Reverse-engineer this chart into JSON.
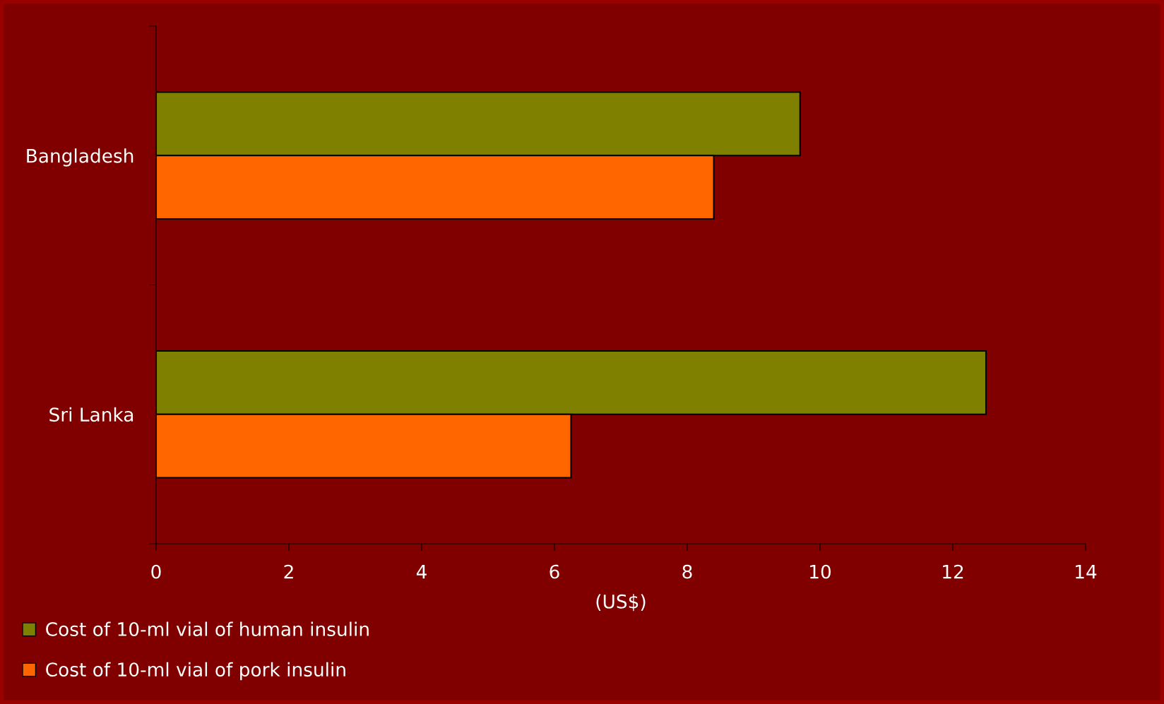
{
  "chart_data": {
    "type": "bar",
    "orientation": "horizontal",
    "xlabel": "(US$)",
    "categories": [
      "Bangladesh",
      "Sri Lanka"
    ],
    "series": [
      {
        "name": "Cost of 10-ml vial of human insulin",
        "color": "#808000",
        "values": [
          9.7,
          12.5
        ]
      },
      {
        "name": "Cost of 10-ml vial of pork insulin",
        "color": "#ff6600",
        "values": [
          8.4,
          6.25
        ]
      }
    ],
    "xlim": [
      0,
      14
    ],
    "xticks": [
      0,
      2,
      4,
      6,
      8,
      10,
      12,
      14
    ],
    "grid": false,
    "legend": "bottom left"
  }
}
